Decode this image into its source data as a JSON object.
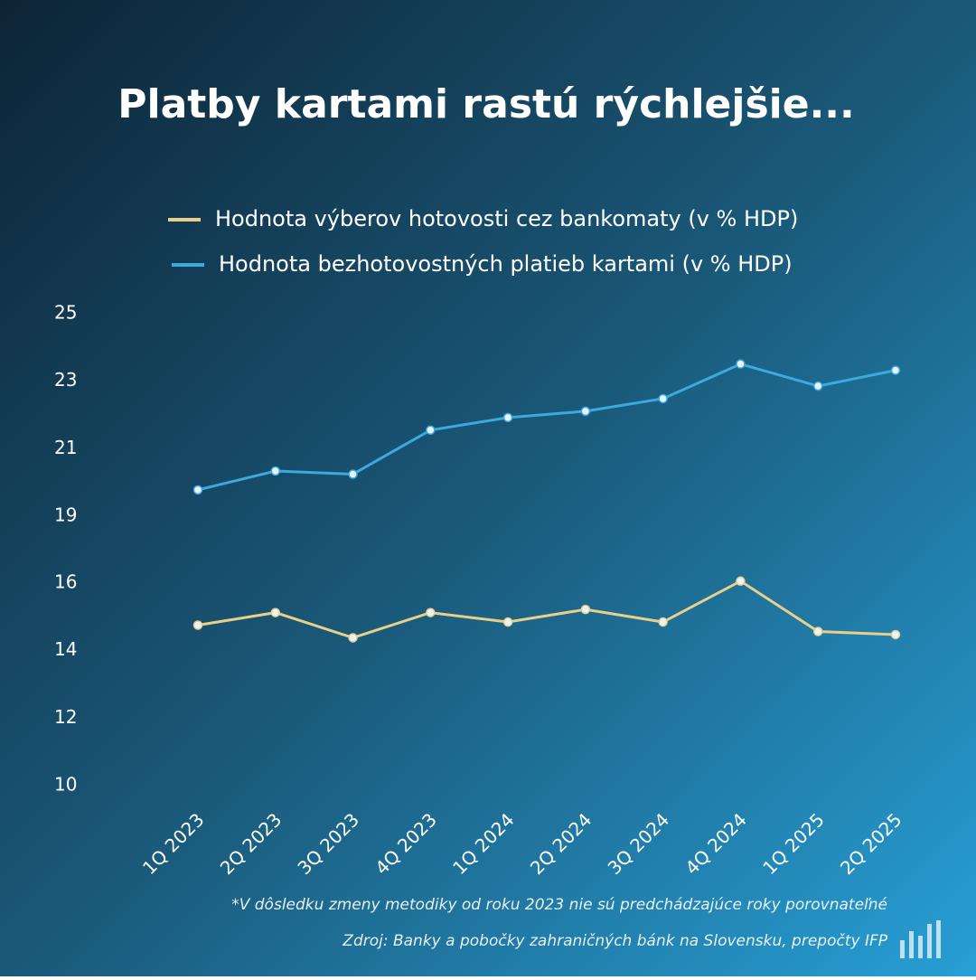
{
  "chart_data": {
    "type": "line",
    "title": "Platby kartami rastú rýchlejšie...",
    "categories": [
      "1Q 2023",
      "2Q 2023",
      "3Q 2023",
      "4Q 2023",
      "1Q 2024",
      "2Q 2024",
      "3Q 2024",
      "4Q 2024",
      "1Q 2025",
      "2Q 2025"
    ],
    "series": [
      {
        "name": "Hodnota výberov hotovosti cez bankomaty (v % HDP)",
        "color": "#e8cf8a",
        "values": [
          15.1,
          15.5,
          14.7,
          15.5,
          15.2,
          15.6,
          15.2,
          16.5,
          14.9,
          14.8
        ]
      },
      {
        "name": "Hodnota bezhotovostných platieb kartami (v % HDP)",
        "color": "#3ca9df",
        "values": [
          19.4,
          20.0,
          19.9,
          21.3,
          21.7,
          21.9,
          22.3,
          23.4,
          22.7,
          23.2
        ]
      }
    ],
    "ylim": [
      10,
      25
    ],
    "yticks": [
      10,
      {
        "value": 12.14,
        "label": "12"
      },
      {
        "value": 14.29,
        "label": "14"
      },
      {
        "value": 16.43,
        "label": "16"
      },
      {
        "value": 18.57,
        "label": "19"
      },
      {
        "value": 20.71,
        "label": "21"
      },
      {
        "value": 22.86,
        "label": "23"
      },
      25
    ],
    "grid": false,
    "notes": [
      "*V dôsledku zmeny metodiky od roku 2023 nie sú predchádzajúce roky porovnateľné",
      "Zdroj: Banky a pobočky zahraničných bánk na Slovensku, prepočty IFP"
    ]
  }
}
